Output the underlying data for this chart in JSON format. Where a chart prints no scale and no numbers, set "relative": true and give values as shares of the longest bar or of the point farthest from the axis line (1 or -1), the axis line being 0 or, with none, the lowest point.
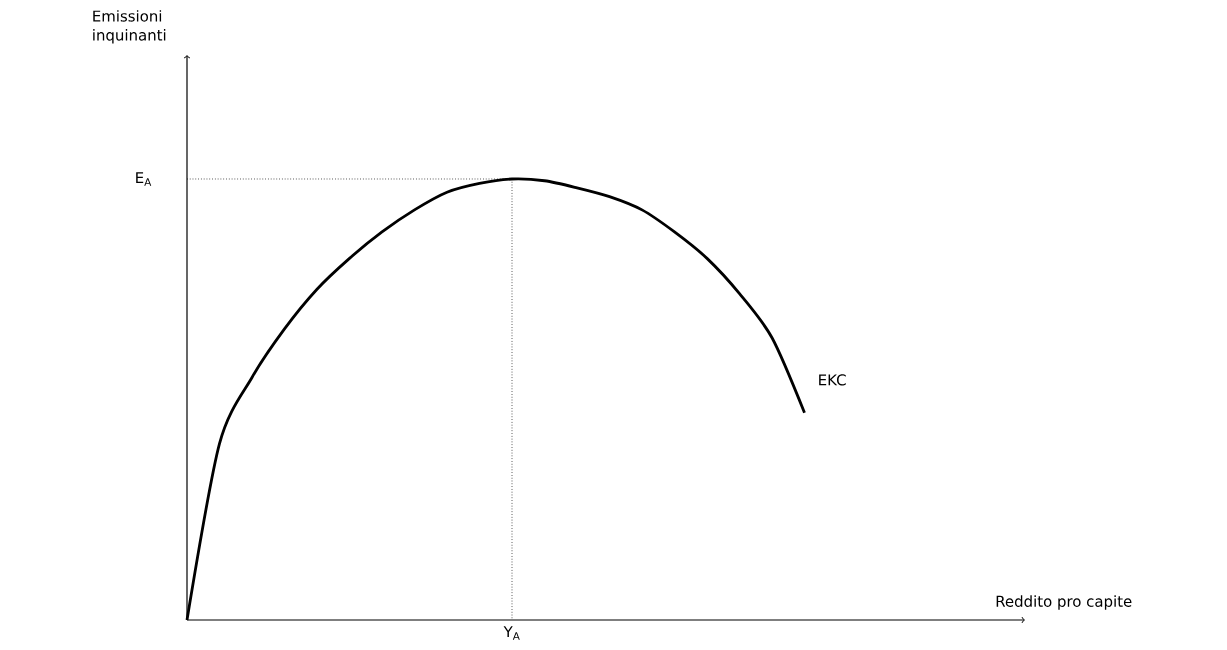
{
  "chart_data": {
    "type": "line",
    "relative": true,
    "categories": [
      null,
      null,
      null,
      null,
      null,
      null,
      null,
      null,
      null,
      null,
      null,
      null,
      null,
      null,
      null,
      null,
      null,
      null,
      null,
      null
    ],
    "series": [
      {
        "name": "EKC",
        "color": "#000000",
        "values": [
          0,
          0.4,
          0.55,
          0.66,
          0.75,
          0.82,
          0.88,
          0.93,
          0.97,
          0.99,
          1,
          0.996,
          0.98,
          0.96,
          0.93,
          0.88,
          0.82,
          0.74,
          0.64,
          0.47
        ]
      }
    ],
    "ref_lines": [
      {
        "axis": "y",
        "value": 1,
        "label": "E$_{A}$",
        "line_style": "dotted"
      }
    ],
    "annotations": [
      "Y$_{A}$",
      "Reddito pro capite",
      "Emissioni inquinanti"
    ],
    "line_style": "solid",
    "marker": "none"
  }
}
